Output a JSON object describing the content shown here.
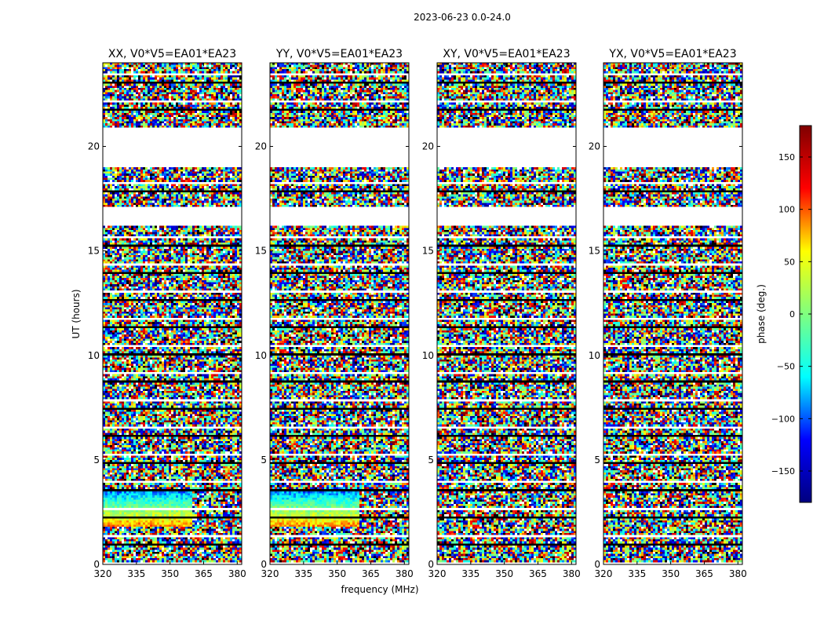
{
  "figure": {
    "suptitle": "2023-06-23 0.0-24.0",
    "xlabel": "frequency (MHz)",
    "ylabel": "UT (hours)"
  },
  "chart_data": {
    "type": "heatmap",
    "x": {
      "range": [
        320,
        382
      ],
      "ticks": [
        320,
        335,
        350,
        365,
        380
      ],
      "unit": "MHz"
    },
    "y": {
      "range": [
        0,
        24
      ],
      "ticks": [
        0,
        5,
        10,
        15,
        20
      ],
      "unit": "hours"
    },
    "panels": [
      {
        "title": "XX, V0*V5=EA01*EA23",
        "pol": "XX"
      },
      {
        "title": "YY, V0*V5=EA01*EA23",
        "pol": "YY"
      },
      {
        "title": "XY, V0*V5=EA01*EA23",
        "pol": "XY"
      },
      {
        "title": "YX, V0*V5=EA01*EA23",
        "pol": "YX"
      }
    ],
    "empty_time_ranges_hours": [
      [
        16.25,
        17.1
      ],
      [
        19.0,
        20.9
      ]
    ],
    "colorbar": {
      "label": "phase (deg.)",
      "range": [
        -180,
        180
      ],
      "ticks": [
        150,
        100,
        50,
        0,
        -50,
        -100,
        -150
      ],
      "tick_labels": [
        "150",
        "100",
        "50",
        "0",
        "−50",
        "−100",
        "−150"
      ],
      "colormap": "jet",
      "stops": [
        "#00007f",
        "#0000ff",
        "#00ffff",
        "#7fff7f",
        "#ffff00",
        "#ff0000",
        "#7f0000"
      ]
    }
  }
}
